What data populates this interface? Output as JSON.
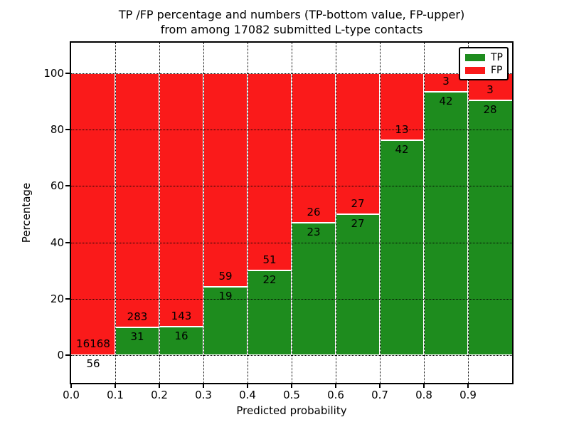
{
  "chart_data": {
    "type": "bar",
    "stacked": true,
    "normalized_to_percent": true,
    "title_line1": "TP /FP percentage and numbers (TP-bottom value, FP-upper)",
    "title_line2": "from among 17082 submitted L-type contacts",
    "xlabel": "Predicted probability",
    "ylabel": "Percentage",
    "xlim": [
      0.0,
      1.0
    ],
    "ylim": [
      -10,
      110
    ],
    "grid": "dotted",
    "yticks": [
      0,
      20,
      40,
      60,
      80,
      100
    ],
    "xticks": [
      "0.0",
      "0.1",
      "0.2",
      "0.3",
      "0.4",
      "0.5",
      "0.6",
      "0.7",
      "0.8",
      "0.9"
    ],
    "colors": {
      "tp": "#1e8c1e",
      "fp": "#fa1a1a"
    },
    "legend": {
      "position": "upper-right",
      "items": [
        {
          "label": "TP",
          "key": "tp"
        },
        {
          "label": "FP",
          "key": "fp"
        }
      ]
    },
    "bins": [
      {
        "range_start": "0.0",
        "tp": 56,
        "fp": 16168
      },
      {
        "range_start": "0.1",
        "tp": 31,
        "fp": 283
      },
      {
        "range_start": "0.2",
        "tp": 16,
        "fp": 143
      },
      {
        "range_start": "0.3",
        "tp": 19,
        "fp": 59
      },
      {
        "range_start": "0.4",
        "tp": 22,
        "fp": 51
      },
      {
        "range_start": "0.5",
        "tp": 23,
        "fp": 26
      },
      {
        "range_start": "0.6",
        "tp": 27,
        "fp": 27
      },
      {
        "range_start": "0.7",
        "tp": 42,
        "fp": 13
      },
      {
        "range_start": "0.8",
        "tp": 42,
        "fp": 3
      },
      {
        "range_start": "0.9",
        "tp": 28,
        "fp": 3
      }
    ]
  }
}
